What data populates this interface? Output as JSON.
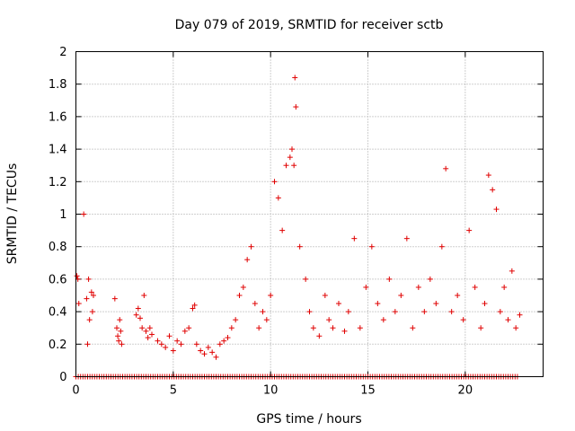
{
  "chart_data": {
    "type": "scatter",
    "title": "Day 079 of 2019, SRMTID for receiver sctb",
    "xlabel": "GPS time / hours",
    "ylabel": "SRMTID / TECUs",
    "xlim": [
      0,
      24
    ],
    "ylim": [
      0,
      2
    ],
    "xticks": [
      0,
      5,
      10,
      15,
      20
    ],
    "xtick_labels": [
      "0",
      "5",
      "10",
      "15",
      "20"
    ],
    "yticks": [
      0,
      0.2,
      0.4,
      0.6,
      0.8,
      1,
      1.2,
      1.4,
      1.6,
      1.8,
      2
    ],
    "ytick_labels": [
      "0",
      "0.2",
      "0.4",
      "0.6",
      "0.8",
      "1",
      "1.2",
      "1.4",
      "1.6",
      "1.8",
      "2"
    ],
    "grid": true,
    "marker": "+",
    "color": "#e00000",
    "series": [
      {
        "name": "SRMTID",
        "x": [
          0.05,
          0.1,
          0.15,
          0.4,
          0.55,
          0.6,
          0.65,
          0.7,
          0.8,
          0.85,
          0.9,
          2.0,
          2.1,
          2.15,
          2.2,
          2.25,
          2.3,
          2.35,
          3.1,
          3.2,
          3.3,
          3.4,
          3.5,
          3.6,
          3.7,
          3.8,
          3.9,
          4.2,
          4.4,
          4.6,
          4.8,
          5.0,
          5.2,
          5.4,
          5.6,
          5.8,
          6.0,
          6.1,
          6.2,
          6.4,
          6.6,
          6.8,
          7.0,
          7.2,
          7.4,
          7.6,
          7.8,
          8.0,
          8.2,
          8.4,
          8.6,
          8.8,
          9.0,
          9.2,
          9.4,
          9.6,
          9.8,
          10.0,
          10.2,
          10.4,
          10.6,
          10.8,
          11.0,
          11.1,
          11.2,
          11.25,
          11.3,
          11.5,
          11.8,
          12.0,
          12.2,
          12.5,
          12.8,
          13.0,
          13.2,
          13.5,
          13.8,
          14.0,
          14.3,
          14.6,
          14.9,
          15.2,
          15.5,
          15.8,
          16.1,
          16.4,
          16.7,
          17.0,
          17.3,
          17.6,
          17.9,
          18.2,
          18.5,
          18.8,
          19.0,
          19.3,
          19.6,
          19.9,
          20.2,
          20.5,
          20.8,
          21.0,
          21.2,
          21.4,
          21.6,
          21.8,
          22.0,
          22.2,
          22.4,
          22.6,
          22.8
        ],
        "y": [
          0.62,
          0.6,
          0.45,
          1.0,
          0.48,
          0.2,
          0.6,
          0.35,
          0.52,
          0.4,
          0.5,
          0.48,
          0.3,
          0.25,
          0.22,
          0.35,
          0.28,
          0.2,
          0.38,
          0.42,
          0.36,
          0.3,
          0.5,
          0.28,
          0.24,
          0.3,
          0.26,
          0.22,
          0.2,
          0.18,
          0.25,
          0.16,
          0.22,
          0.2,
          0.28,
          0.3,
          0.42,
          0.44,
          0.2,
          0.16,
          0.14,
          0.18,
          0.15,
          0.12,
          0.2,
          0.22,
          0.24,
          0.3,
          0.35,
          0.5,
          0.55,
          0.72,
          0.8,
          0.45,
          0.3,
          0.4,
          0.35,
          0.5,
          1.2,
          1.1,
          0.9,
          1.3,
          1.35,
          1.4,
          1.3,
          1.84,
          1.66,
          0.8,
          0.6,
          0.4,
          0.3,
          0.25,
          0.5,
          0.35,
          0.3,
          0.45,
          0.28,
          0.4,
          0.85,
          0.3,
          0.55,
          0.8,
          0.45,
          0.35,
          0.6,
          0.4,
          0.5,
          0.85,
          0.3,
          0.55,
          0.4,
          0.6,
          0.45,
          0.8,
          1.28,
          0.4,
          0.5,
          0.35,
          0.9,
          0.55,
          0.3,
          0.45,
          1.24,
          1.15,
          1.03,
          0.4,
          0.55,
          0.35,
          0.65,
          0.3,
          0.38
        ],
        "zero_band_x_range": [
          0,
          22.8
        ]
      }
    ]
  }
}
